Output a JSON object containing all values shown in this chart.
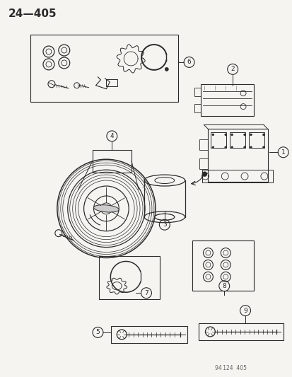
{
  "title": "24—405",
  "footer": "94 124  405",
  "bg_color": "#f5f4f0",
  "line_color": "#2a2a2a",
  "fig_w": 4.14,
  "fig_h": 5.33,
  "dpi": 100
}
